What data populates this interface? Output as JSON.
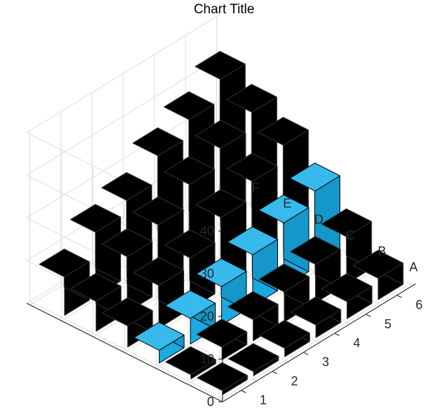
{
  "chart_data": {
    "type": "bar3",
    "title": "Chart Title",
    "xlabel": "",
    "ylabel": "",
    "zlabel": "",
    "row_labels": [
      "1",
      "2",
      "3",
      "4",
      "5",
      "6"
    ],
    "column_labels": [
      "A",
      "B",
      "C",
      "D",
      "E",
      "F"
    ],
    "z_ticks": [
      0,
      10,
      20,
      30,
      40
    ],
    "z_range": [
      0,
      40
    ],
    "grid": true,
    "highlight_column": "C",
    "series": [
      {
        "name": "A",
        "values": [
          1,
          1,
          2,
          3,
          4,
          5
        ]
      },
      {
        "name": "B",
        "values": [
          1,
          3,
          5,
          7,
          9,
          11
        ]
      },
      {
        "name": "C",
        "values": [
          3,
          6,
          9,
          12,
          15,
          18
        ]
      },
      {
        "name": "D",
        "values": [
          5,
          10,
          12,
          17,
          21,
          25
        ]
      },
      {
        "name": "E",
        "values": [
          7,
          13,
          16,
          21,
          25,
          29
        ]
      },
      {
        "name": "F",
        "values": [
          9,
          15,
          18,
          24,
          28,
          33
        ]
      }
    ],
    "colors": {
      "bar": "#000000",
      "highlight": "#1aa9e0",
      "highlight_top": "#38b9ec",
      "highlight_side": "#1597c9",
      "grid": "#dddddd",
      "axis": "#262626",
      "text": "#262626"
    }
  }
}
